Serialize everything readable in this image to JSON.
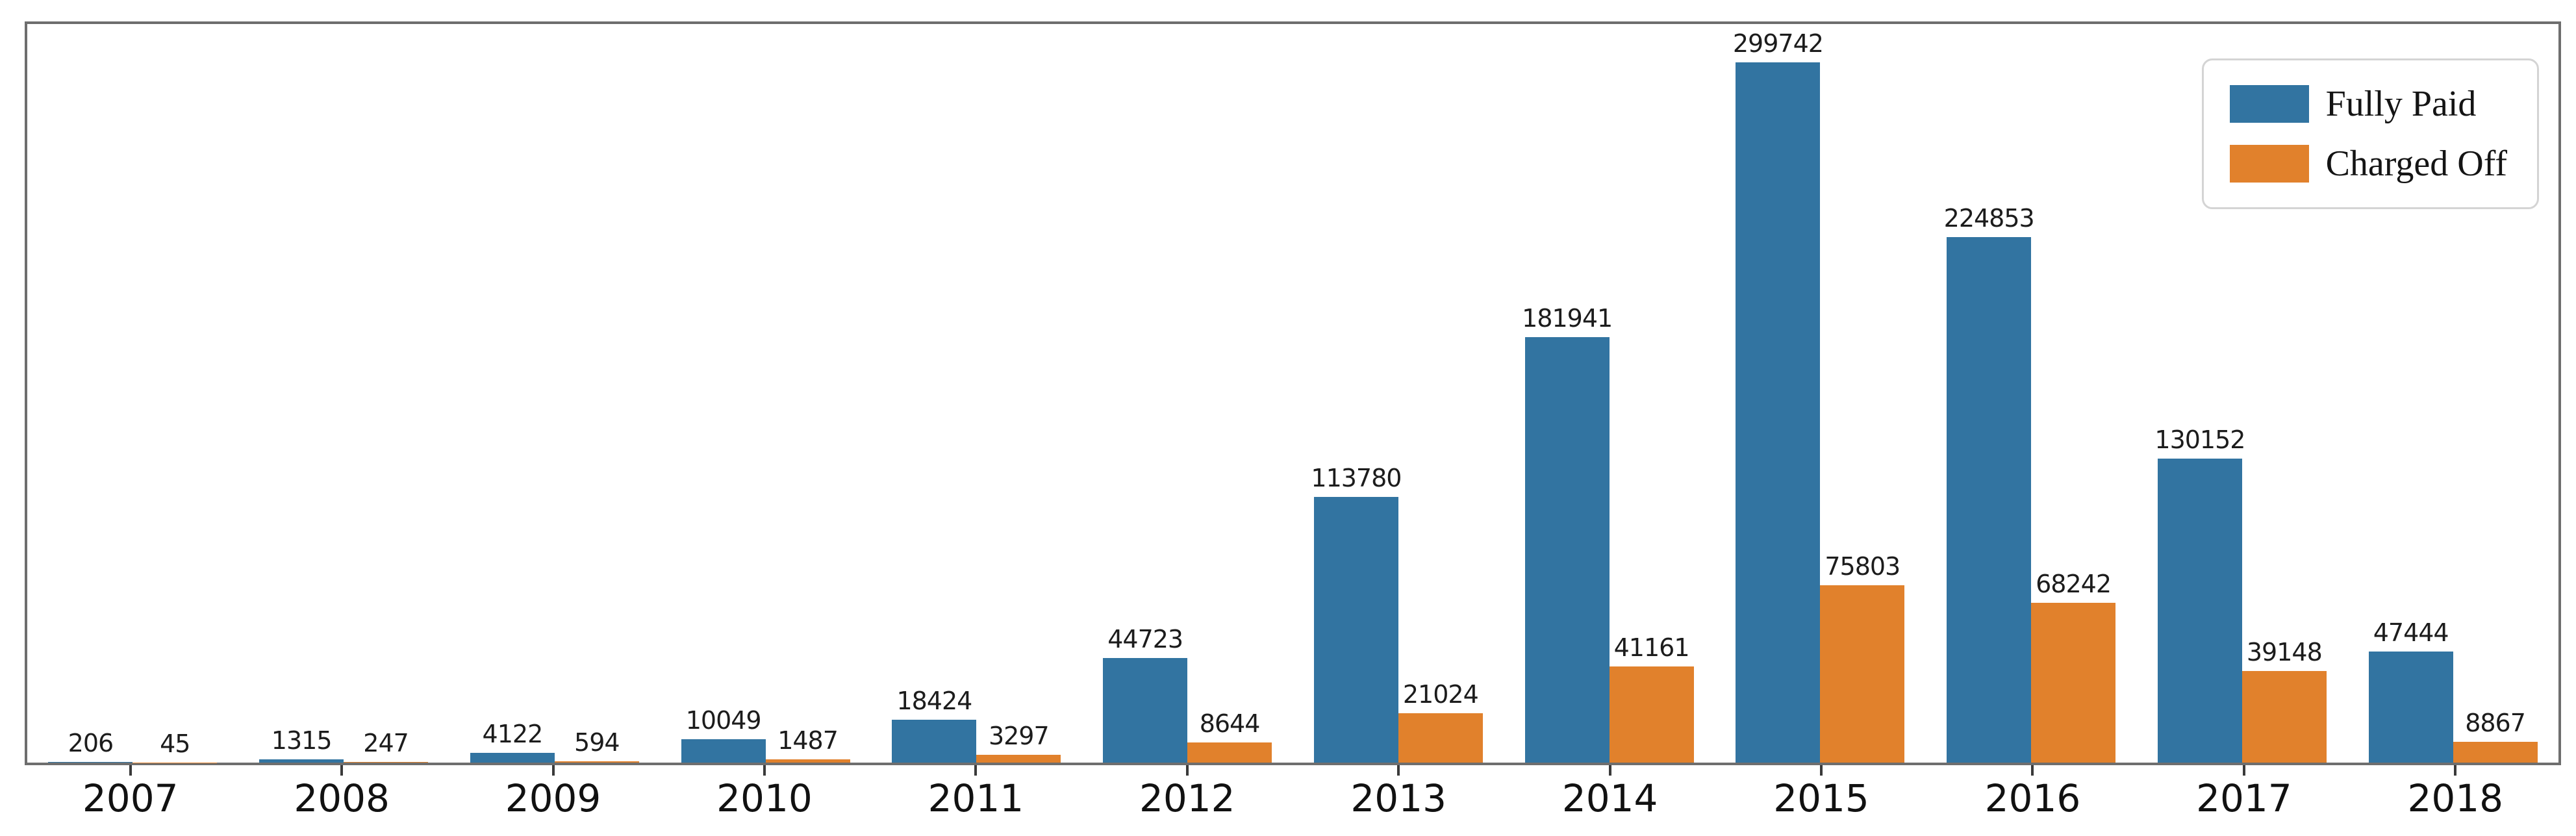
{
  "chart_data": {
    "type": "bar",
    "title": "",
    "xlabel": "",
    "ylabel": "",
    "categories": [
      "2007",
      "2008",
      "2009",
      "2010",
      "2011",
      "2012",
      "2013",
      "2014",
      "2015",
      "2016",
      "2017",
      "2018"
    ],
    "series": [
      {
        "name": "Fully Paid",
        "color": "#3274a1",
        "values": [
          206,
          1315,
          4122,
          10049,
          18424,
          44723,
          113780,
          181941,
          299742,
          224853,
          130152,
          47444
        ]
      },
      {
        "name": "Charged Off",
        "color": "#e1812c",
        "values": [
          45,
          247,
          594,
          1487,
          3297,
          8644,
          21024,
          41161,
          75803,
          68242,
          39148,
          8867
        ]
      }
    ],
    "ylim": [
      0,
      316000
    ],
    "grid": false,
    "y_axis_labels_visible": false,
    "bar_labels_visible": true,
    "legend_position": "upper right",
    "bar_width_fraction": 0.4
  }
}
